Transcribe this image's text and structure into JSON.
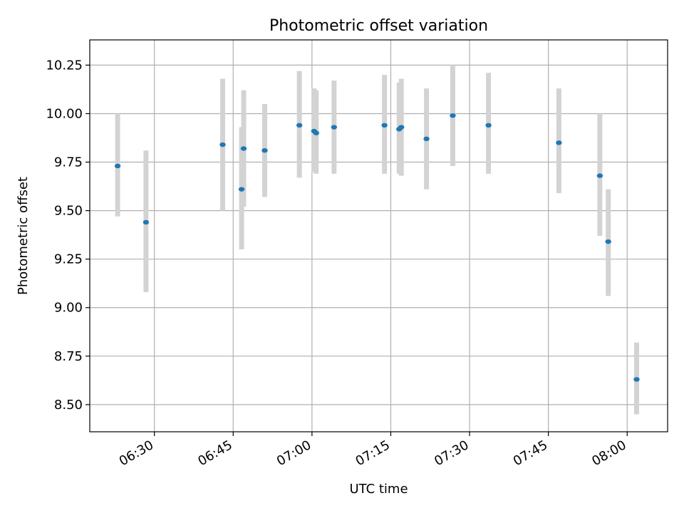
{
  "chart_data": {
    "type": "scatter",
    "title": "Photometric offset variation",
    "xlabel": "UTC time",
    "ylabel": "Photometric offset",
    "x_ticks": [
      "06:30",
      "06:45",
      "07:00",
      "07:15",
      "07:30",
      "07:45",
      "08:00"
    ],
    "x_tick_minutes": [
      390,
      405,
      420,
      435,
      450,
      465,
      480
    ],
    "xlim_minutes": [
      377.7,
      487.7
    ],
    "y_ticks": [
      "8.50",
      "8.75",
      "9.00",
      "9.25",
      "9.50",
      "9.75",
      "10.00",
      "10.25"
    ],
    "y_tick_values": [
      8.5,
      8.75,
      9.0,
      9.25,
      9.5,
      9.75,
      10.0,
      10.25
    ],
    "ylim": [
      8.36,
      10.38
    ],
    "grid": true,
    "series": [
      {
        "time": [
          "06:23:00",
          "06:28:24",
          "06:43:00",
          "06:46:36",
          "06:47:00",
          "06:51:00",
          "06:57:36",
          "07:00:24",
          "07:00:48",
          "07:04:12",
          "07:13:48",
          "07:16:36",
          "07:17:00",
          "07:21:48",
          "07:26:48",
          "07:33:36",
          "07:47:00",
          "07:54:48",
          "07:56:24",
          "08:01:48"
        ],
        "x_minutes": [
          383.0,
          388.4,
          403.0,
          406.6,
          407.0,
          411.0,
          417.6,
          420.4,
          420.8,
          424.2,
          433.8,
          436.6,
          437.0,
          441.8,
          446.8,
          453.6,
          467.0,
          474.8,
          476.4,
          481.8
        ],
        "y": [
          9.73,
          9.44,
          9.84,
          9.61,
          9.82,
          9.81,
          9.94,
          9.91,
          9.9,
          9.93,
          9.94,
          9.92,
          9.93,
          9.87,
          9.99,
          9.94,
          9.85,
          9.68,
          9.34,
          8.63
        ],
        "err_low": [
          9.47,
          9.08,
          9.5,
          9.3,
          9.52,
          9.57,
          9.67,
          9.7,
          9.69,
          9.69,
          9.69,
          9.69,
          9.68,
          9.61,
          9.73,
          9.69,
          9.59,
          9.37,
          9.06,
          8.45
        ],
        "err_high": [
          10.0,
          9.81,
          10.18,
          9.93,
          10.12,
          10.05,
          10.22,
          10.13,
          10.12,
          10.17,
          10.2,
          10.16,
          10.18,
          10.13,
          10.25,
          10.21,
          10.13,
          10.0,
          9.61,
          8.82
        ],
        "color": "#1f77b4",
        "errorbar_color": "#d3d3d3"
      }
    ]
  }
}
